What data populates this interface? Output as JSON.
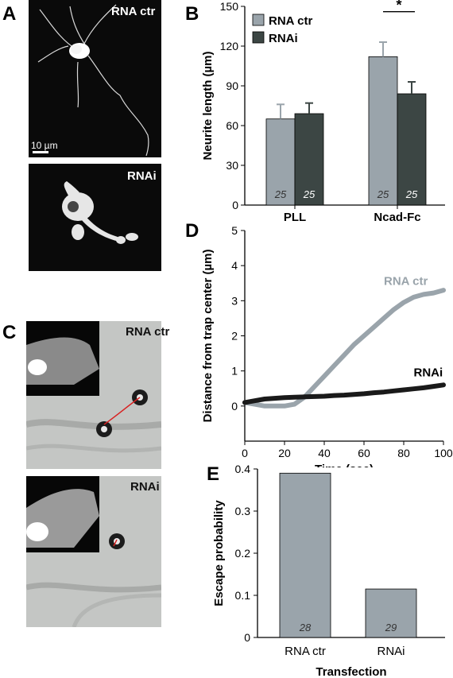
{
  "panels": {
    "A": {
      "letter": "A",
      "top_label": "RNA ctr",
      "scale_bar": "10 µm",
      "bottom_label": "RNAi"
    },
    "B": {
      "letter": "B"
    },
    "C": {
      "letter": "C",
      "top_label": "RNA ctr",
      "bottom_label": "RNAi"
    },
    "D": {
      "letter": "D",
      "label_ctr": "RNA ctr",
      "label_rnai": "RNAi"
    },
    "E": {
      "letter": "E"
    }
  },
  "colors": {
    "ctr": "#9aa4ab",
    "rnai": "#3c4644",
    "curve_ctr": "#9aa4ab",
    "curve_rnai": "#1a1a1a",
    "trajectory": "#d82020"
  },
  "chart_data": [
    {
      "id": "B",
      "type": "bar",
      "categories": [
        "PLL",
        "Ncad-Fc"
      ],
      "series": [
        {
          "name": "RNA ctr",
          "values": [
            65,
            112
          ],
          "errors": [
            11,
            11
          ],
          "n": [
            "25",
            "25"
          ]
        },
        {
          "name": "RNAi",
          "values": [
            69,
            84
          ],
          "errors": [
            8,
            9
          ],
          "n": [
            "25",
            "25"
          ]
        }
      ],
      "ylabel": "Neurite length (µm)",
      "ylim": [
        0,
        150
      ],
      "yticks": [
        0,
        30,
        60,
        90,
        120,
        150
      ],
      "significance": "*",
      "legend": "top-left"
    },
    {
      "id": "D",
      "type": "line",
      "xlabel": "Time (sec)",
      "ylabel": "Distance from trap center (µm)",
      "xlim": [
        0,
        100
      ],
      "ylim": [
        -1,
        5
      ],
      "xticks": [
        0,
        20,
        40,
        60,
        80,
        100
      ],
      "yticks": [
        0,
        1,
        2,
        3,
        4,
        5
      ],
      "series": [
        {
          "name": "RNA ctr",
          "x": [
            0,
            5,
            10,
            15,
            20,
            25,
            30,
            35,
            40,
            45,
            50,
            55,
            60,
            65,
            70,
            75,
            80,
            85,
            90,
            95,
            100
          ],
          "y": [
            0.1,
            0.05,
            0.0,
            0.0,
            0.0,
            0.05,
            0.25,
            0.55,
            0.85,
            1.15,
            1.45,
            1.75,
            2.0,
            2.25,
            2.5,
            2.75,
            2.95,
            3.1,
            3.18,
            3.22,
            3.3
          ]
        },
        {
          "name": "RNAi",
          "x": [
            0,
            5,
            10,
            15,
            20,
            25,
            30,
            35,
            40,
            45,
            50,
            55,
            60,
            65,
            70,
            75,
            80,
            85,
            90,
            95,
            100
          ],
          "y": [
            0.1,
            0.15,
            0.2,
            0.22,
            0.24,
            0.25,
            0.26,
            0.27,
            0.28,
            0.3,
            0.31,
            0.33,
            0.35,
            0.38,
            0.4,
            0.43,
            0.46,
            0.49,
            0.52,
            0.56,
            0.6
          ]
        }
      ]
    },
    {
      "id": "E",
      "type": "bar",
      "categories": [
        "RNA ctr",
        "RNAi"
      ],
      "values": [
        0.39,
        0.115
      ],
      "n": [
        "28",
        "29"
      ],
      "ylabel": "Escape probability",
      "xlabel": "Transfection",
      "ylim": [
        0,
        0.4
      ],
      "yticks": [
        "0",
        "0.1",
        "0.2",
        "0.3",
        "0.4"
      ]
    }
  ]
}
